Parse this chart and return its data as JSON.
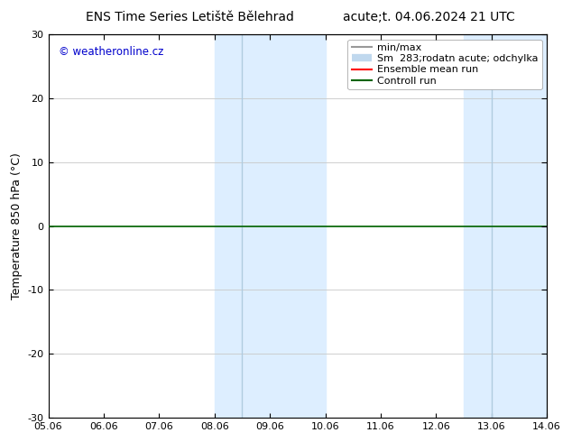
{
  "title_left": "ENS Time Series Letiště Bělehrad",
  "title_right": "acute;t. 04.06.2024 21 UTC",
  "ylabel": "Temperature 850 hPa (°C)",
  "xlabel_ticks": [
    "05.06",
    "06.06",
    "07.06",
    "08.06",
    "09.06",
    "10.06",
    "11.06",
    "12.06",
    "13.06",
    "14.06"
  ],
  "xlim": [
    0,
    9
  ],
  "ylim": [
    -30,
    30
  ],
  "yticks": [
    -30,
    -20,
    -10,
    0,
    10,
    20,
    30
  ],
  "background_color": "#ffffff",
  "plot_bg_color": "#ffffff",
  "shaded_regions": [
    {
      "x_start": 3.0,
      "x_end": 3.5
    },
    {
      "x_start": 3.5,
      "x_end": 5.0
    },
    {
      "x_start": 7.5,
      "x_end": 8.0
    },
    {
      "x_start": 8.0,
      "x_end": 9.0
    }
  ],
  "shaded_pairs": [
    {
      "x_start": 3.0,
      "x_end": 5.0
    },
    {
      "x_start": 7.5,
      "x_end": 9.0
    }
  ],
  "vlines_in_bands": [
    3.5,
    8.0
  ],
  "control_run_y": 0,
  "control_run_color": "#006400",
  "ensemble_mean_color": "#ff0000",
  "watermark_text": "© weatheronline.cz",
  "watermark_color": "#0000cc",
  "grid_color": "#c8c8c8",
  "spine_color": "#000000",
  "title_fontsize": 10,
  "tick_fontsize": 8,
  "ylabel_fontsize": 9,
  "zero_line_color": "#006400",
  "band_color": "#ddeeff",
  "band_divider_color": "#b0cce0",
  "legend_font_size": 8
}
